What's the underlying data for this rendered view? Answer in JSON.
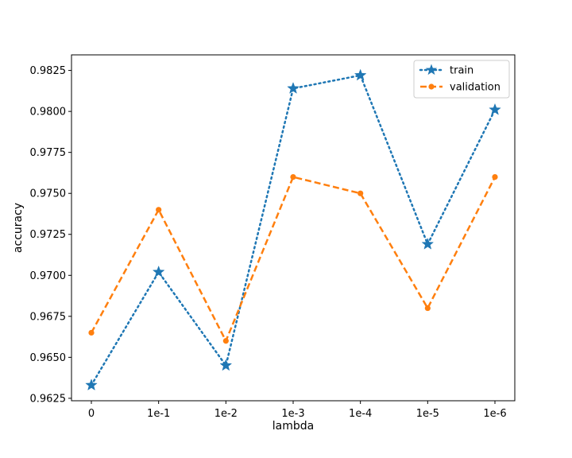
{
  "chart_data": {
    "type": "line",
    "title": "",
    "xlabel": "lambda",
    "ylabel": "accuracy",
    "categories": [
      "0",
      "1e-1",
      "1e-2",
      "1e-3",
      "1e-4",
      "1e-5",
      "1e-6"
    ],
    "ylim": [
      0.9625,
      0.9825
    ],
    "yticks": [
      "0.9625",
      "0.9650",
      "0.9675",
      "0.9700",
      "0.9725",
      "0.9750",
      "0.9775",
      "0.9800",
      "0.9825"
    ],
    "grid": false,
    "legend_position": "top-right",
    "series": [
      {
        "name": "train",
        "color": "#1f77b4",
        "line_style": "dotted",
        "marker": "star",
        "values": [
          0.9633,
          0.9702,
          0.9645,
          0.9814,
          0.9822,
          0.9719,
          0.9801
        ]
      },
      {
        "name": "validation",
        "color": "#ff7f0e",
        "line_style": "dashed",
        "marker": "circle",
        "values": [
          0.9665,
          0.974,
          0.966,
          0.976,
          0.975,
          0.968,
          0.976
        ]
      }
    ]
  }
}
